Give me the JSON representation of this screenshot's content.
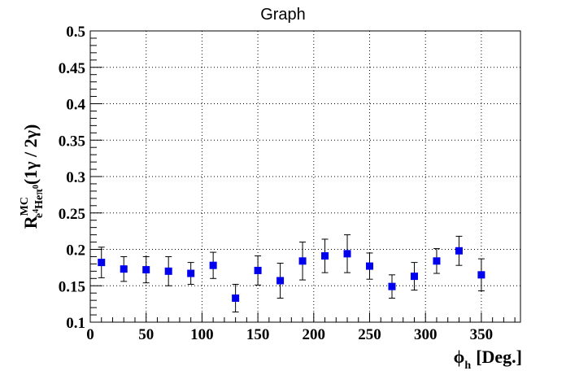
{
  "chart_data": {
    "type": "scatter",
    "title": "Graph",
    "xlabel": {
      "main": "ϕ",
      "sub": "h",
      "unit": "[Deg.]"
    },
    "ylabel": {
      "main": "R",
      "sup": "MC",
      "sub_part1": "e",
      "sub_sup": "4",
      "sub_part2": "Heπ",
      "sub_sup2": "0",
      "suffix": "(1γ / 2γ)"
    },
    "xlim": [
      0,
      385
    ],
    "ylim": [
      0.1,
      0.5
    ],
    "xticks": [
      0,
      50,
      100,
      150,
      200,
      250,
      300,
      350
    ],
    "yticks": [
      0.1,
      0.15,
      0.2,
      0.25,
      0.3,
      0.35,
      0.4,
      0.45,
      0.5
    ],
    "ytick_labels": [
      "0.1",
      "0.15",
      "0.2",
      "0.25",
      "0.3",
      "0.35",
      "0.4",
      "0.45",
      "0.5"
    ],
    "grid": true,
    "marker_color": "#0000ee",
    "points": [
      {
        "x": 10,
        "y": 0.182,
        "err": 0.021
      },
      {
        "x": 30,
        "y": 0.173,
        "err": 0.017
      },
      {
        "x": 50,
        "y": 0.172,
        "err": 0.018
      },
      {
        "x": 70,
        "y": 0.17,
        "err": 0.02
      },
      {
        "x": 90,
        "y": 0.167,
        "err": 0.015
      },
      {
        "x": 110,
        "y": 0.178,
        "err": 0.018
      },
      {
        "x": 130,
        "y": 0.133,
        "err": 0.019
      },
      {
        "x": 150,
        "y": 0.171,
        "err": 0.02
      },
      {
        "x": 170,
        "y": 0.157,
        "err": 0.024
      },
      {
        "x": 190,
        "y": 0.184,
        "err": 0.026
      },
      {
        "x": 210,
        "y": 0.191,
        "err": 0.023
      },
      {
        "x": 230,
        "y": 0.194,
        "err": 0.026
      },
      {
        "x": 250,
        "y": 0.177,
        "err": 0.018
      },
      {
        "x": 270,
        "y": 0.149,
        "err": 0.016
      },
      {
        "x": 290,
        "y": 0.163,
        "err": 0.019
      },
      {
        "x": 310,
        "y": 0.184,
        "err": 0.017
      },
      {
        "x": 330,
        "y": 0.198,
        "err": 0.02
      },
      {
        "x": 350,
        "y": 0.165,
        "err": 0.022
      }
    ]
  }
}
